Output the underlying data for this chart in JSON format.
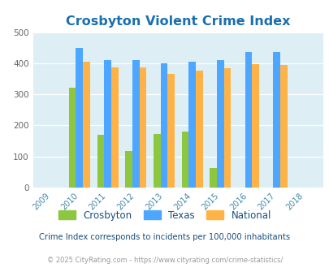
{
  "title": "Crosbyton Violent Crime Index",
  "years": [
    2009,
    2010,
    2011,
    2012,
    2013,
    2014,
    2015,
    2016,
    2017,
    2018
  ],
  "crosbyton": [
    null,
    322,
    170,
    117,
    172,
    181,
    64,
    null,
    null,
    null
  ],
  "texas": [
    null,
    450,
    409,
    409,
    400,
    406,
    411,
    435,
    437,
    null
  ],
  "national": [
    null,
    406,
    387,
    387,
    367,
    376,
    383,
    396,
    394,
    null
  ],
  "colors": {
    "crosbyton": "#8dc63f",
    "texas": "#4da6ff",
    "national": "#ffb347"
  },
  "bg_color": "#ddeef5",
  "ylim": [
    0,
    500
  ],
  "yticks": [
    0,
    100,
    200,
    300,
    400,
    500
  ],
  "subtitle": "Crime Index corresponds to incidents per 100,000 inhabitants",
  "footer": "© 2025 CityRating.com - https://www.cityrating.com/crime-statistics/",
  "title_color": "#1a6faf",
  "subtitle_color": "#1a4f7a",
  "footer_color": "#999999",
  "tick_color": "#4488aa",
  "legend_labels": [
    "Crosbyton",
    "Texas",
    "National"
  ],
  "legend_text_color": "#1a4f7a"
}
